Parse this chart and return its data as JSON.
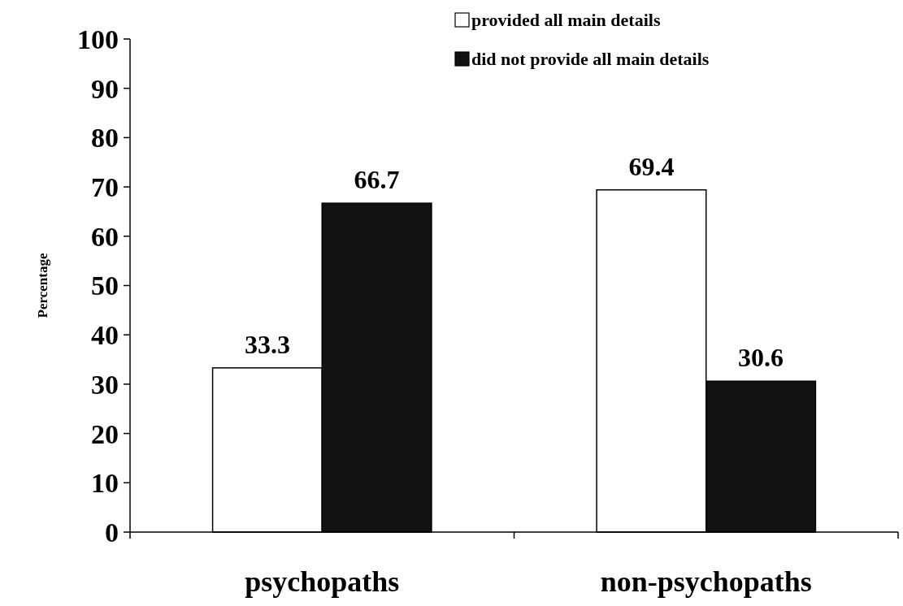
{
  "chart_data": {
    "type": "bar",
    "ylabel": "Percentage",
    "categories": [
      "psychopaths",
      "non-psychopaths"
    ],
    "series": [
      {
        "name": "provided all main details",
        "color": "#ffffff",
        "values": [
          33.3,
          69.4
        ]
      },
      {
        "name": "did not provide all main details",
        "color": "#111111",
        "values": [
          66.7,
          30.6
        ]
      }
    ],
    "ylim": [
      0,
      100
    ],
    "yticks": [
      0,
      10,
      20,
      30,
      40,
      50,
      60,
      70,
      80,
      90,
      100
    ],
    "data_labels": true,
    "legend": "top right"
  }
}
